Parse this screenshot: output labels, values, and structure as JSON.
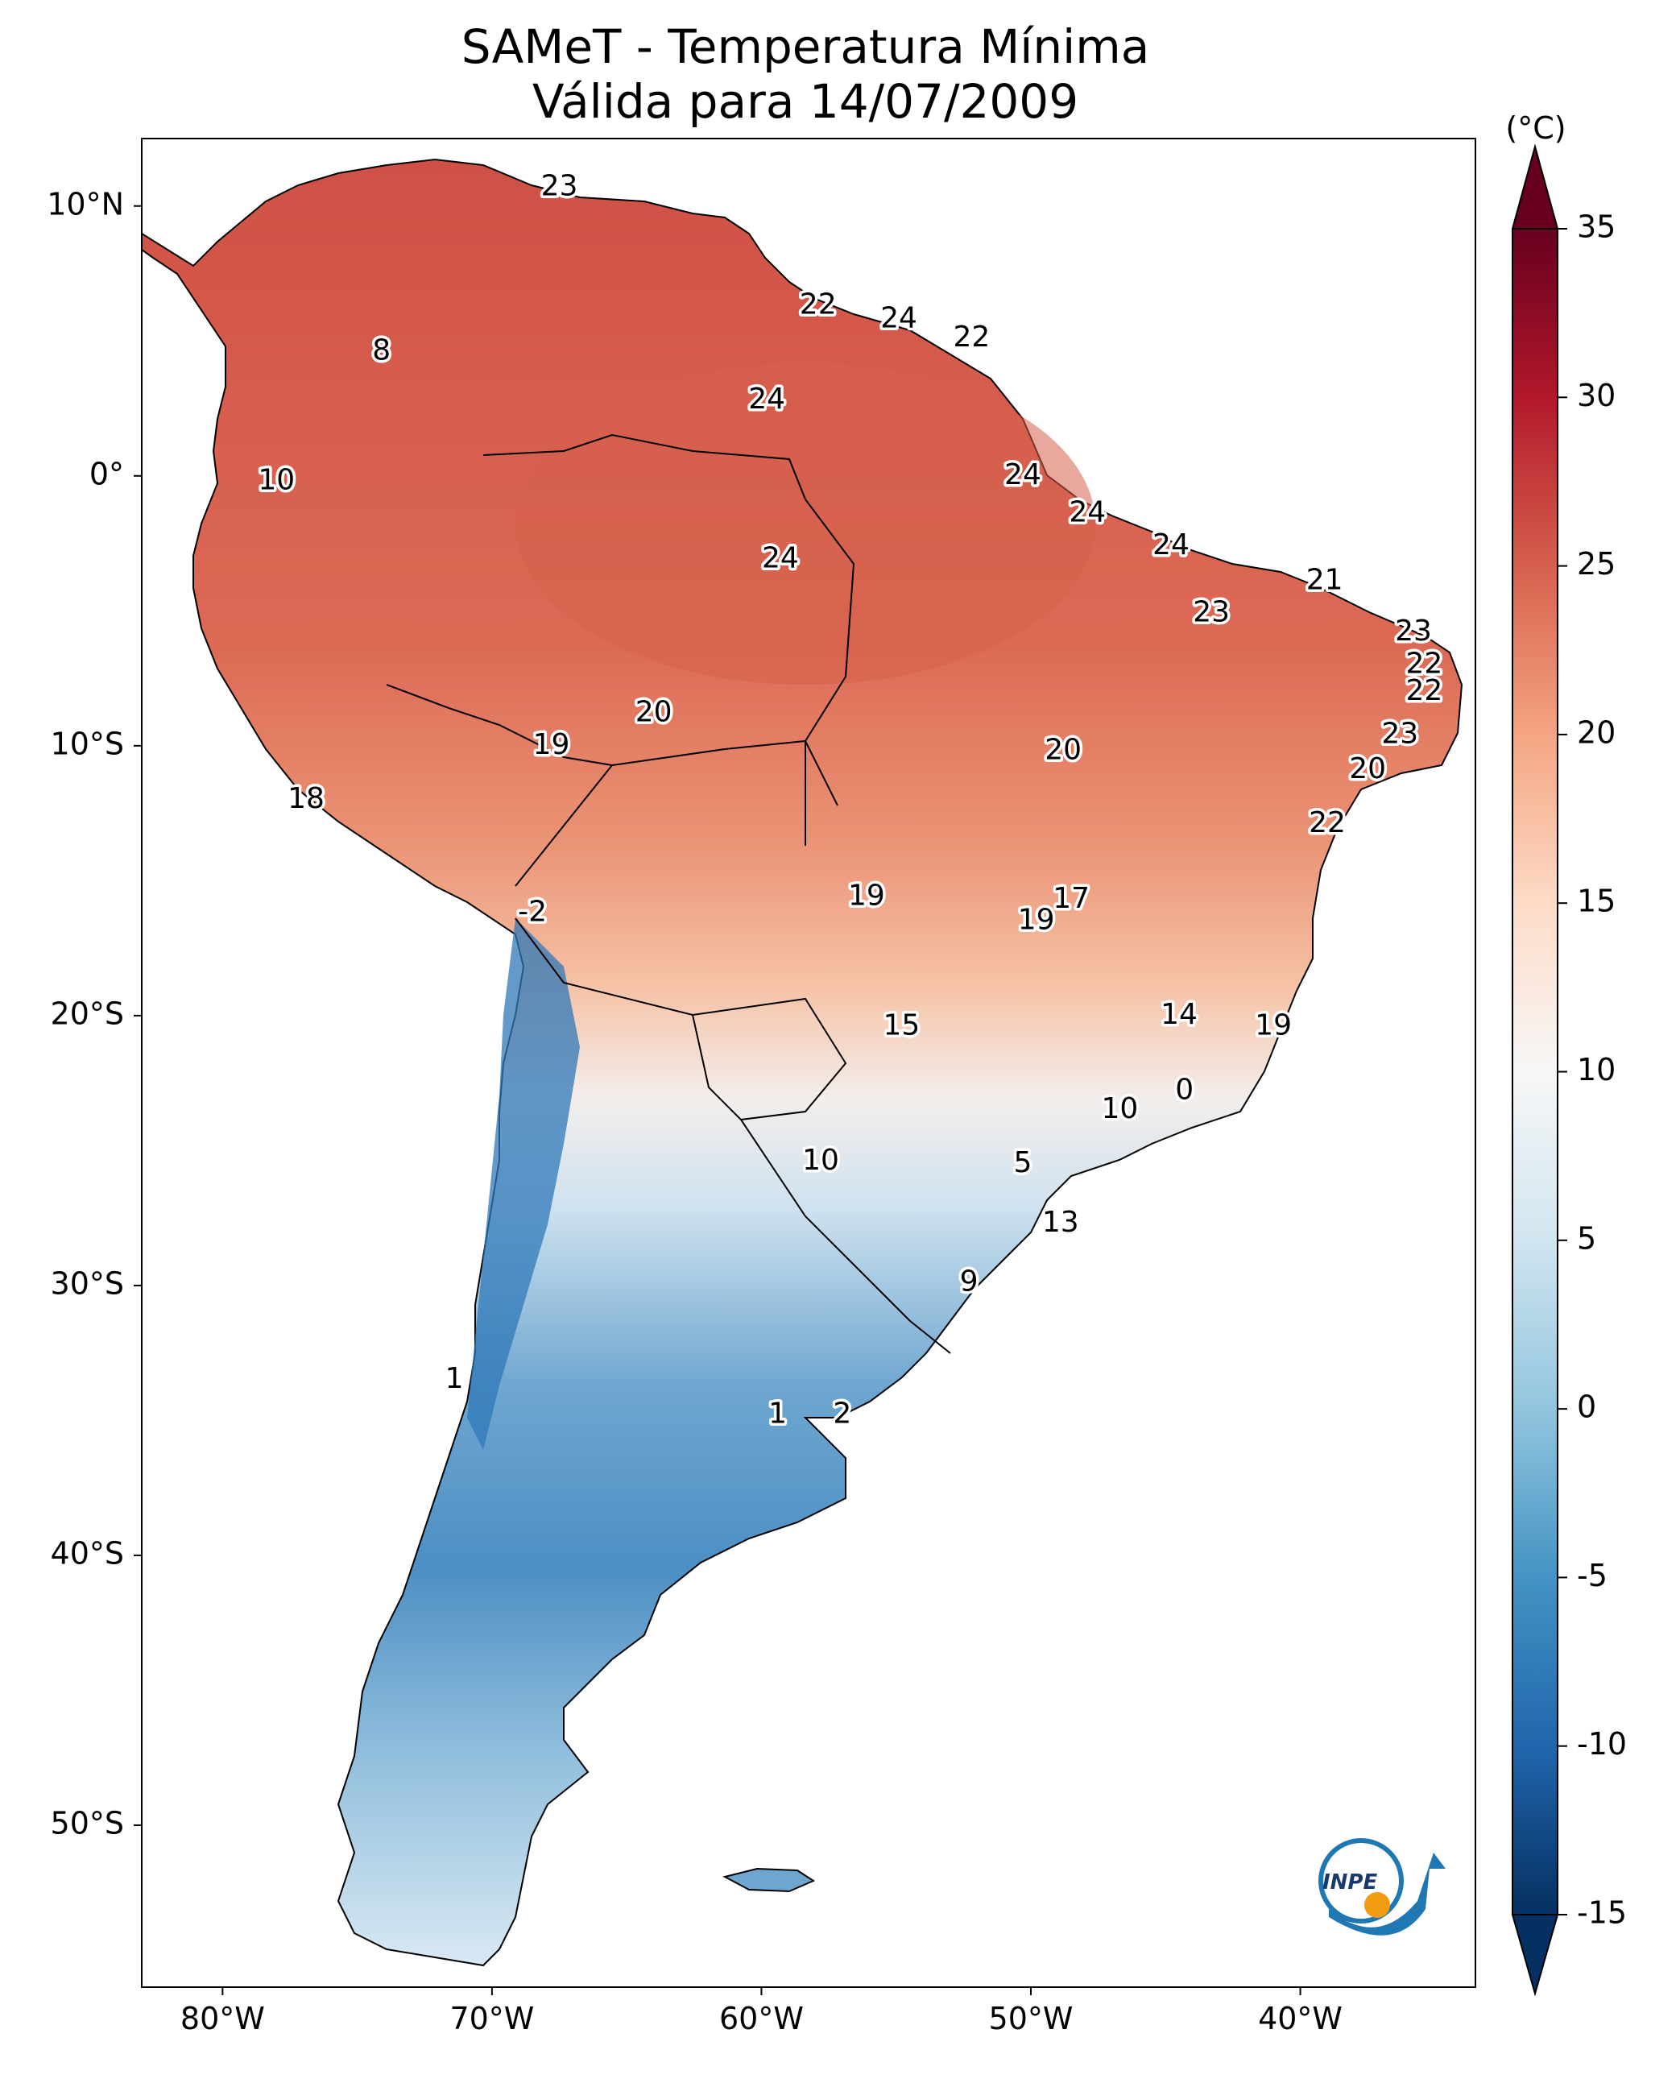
{
  "title": {
    "line1": "SAMeT - Temperatura Mínima",
    "line2": "Válida para 14/07/2009"
  },
  "axes": {
    "lat_ticks": [
      {
        "label": "10°N",
        "value": 10
      },
      {
        "label": "0°",
        "value": 0
      },
      {
        "label": "10°S",
        "value": -10
      },
      {
        "label": "20°S",
        "value": -20
      },
      {
        "label": "30°S",
        "value": -30
      },
      {
        "label": "40°S",
        "value": -40
      },
      {
        "label": "50°S",
        "value": -50
      }
    ],
    "lon_ticks": [
      {
        "label": "80°W",
        "value": -80
      },
      {
        "label": "70°W",
        "value": -70
      },
      {
        "label": "60°W",
        "value": -60
      },
      {
        "label": "50°W",
        "value": -50
      },
      {
        "label": "40°W",
        "value": -40
      }
    ],
    "lon_range": [
      -83,
      -33.5
    ],
    "lat_range": [
      -56,
      12.5
    ]
  },
  "colorbar": {
    "unit": "(°C)",
    "ticks": [
      "35",
      "30",
      "25",
      "20",
      "15",
      "10",
      "5",
      "0",
      "-5",
      "-10",
      "-15"
    ],
    "range": [
      -15,
      35
    ],
    "colormap": "RdBu_r",
    "extend": "both"
  },
  "values": [
    {
      "text": "23",
      "lon": -67.5,
      "lat": 10.7
    },
    {
      "text": "22",
      "lon": -57.9,
      "lat": 6.3
    },
    {
      "text": "24",
      "lon": -54.9,
      "lat": 5.8
    },
    {
      "text": "22",
      "lon": -52.2,
      "lat": 5.1
    },
    {
      "text": "8",
      "lon": -74.1,
      "lat": 4.6
    },
    {
      "text": "24",
      "lon": -59.8,
      "lat": 2.8
    },
    {
      "text": "24",
      "lon": -50.3,
      "lat": 0.0
    },
    {
      "text": "10",
      "lon": -78.0,
      "lat": -0.2
    },
    {
      "text": "24",
      "lon": -47.9,
      "lat": -1.4
    },
    {
      "text": "24",
      "lon": -44.8,
      "lat": -2.6
    },
    {
      "text": "24",
      "lon": -59.3,
      "lat": -3.1
    },
    {
      "text": "21",
      "lon": -39.1,
      "lat": -3.9
    },
    {
      "text": "23",
      "lon": -43.3,
      "lat": -5.1
    },
    {
      "text": "23",
      "lon": -35.8,
      "lat": -5.8
    },
    {
      "text": "22",
      "lon": -35.4,
      "lat": -7.0
    },
    {
      "text": "22",
      "lon": -35.4,
      "lat": -8.0
    },
    {
      "text": "20",
      "lon": -64.0,
      "lat": -8.8
    },
    {
      "text": "23",
      "lon": -36.3,
      "lat": -9.6
    },
    {
      "text": "19",
      "lon": -67.8,
      "lat": -10.0
    },
    {
      "text": "20",
      "lon": -48.8,
      "lat": -10.2
    },
    {
      "text": "20",
      "lon": -37.5,
      "lat": -10.9
    },
    {
      "text": "18",
      "lon": -76.9,
      "lat": -12.0
    },
    {
      "text": "22",
      "lon": -39.0,
      "lat": -12.9
    },
    {
      "text": "17",
      "lon": -48.5,
      "lat": -15.7
    },
    {
      "text": "19",
      "lon": -56.1,
      "lat": -15.6
    },
    {
      "text": "-2",
      "lon": -68.5,
      "lat": -16.2
    },
    {
      "text": "19",
      "lon": -49.8,
      "lat": -16.5
    },
    {
      "text": "14",
      "lon": -44.5,
      "lat": -20.0
    },
    {
      "text": "15",
      "lon": -54.8,
      "lat": -20.4
    },
    {
      "text": "19",
      "lon": -41.0,
      "lat": -20.4
    },
    {
      "text": "0",
      "lon": -44.3,
      "lat": -22.8
    },
    {
      "text": "10",
      "lon": -46.7,
      "lat": -23.5
    },
    {
      "text": "10",
      "lon": -57.8,
      "lat": -25.4
    },
    {
      "text": "5",
      "lon": -50.3,
      "lat": -25.5
    },
    {
      "text": "13",
      "lon": -48.9,
      "lat": -27.7
    },
    {
      "text": "9",
      "lon": -52.3,
      "lat": -29.9
    },
    {
      "text": "1",
      "lon": -71.4,
      "lat": -33.5
    },
    {
      "text": "1",
      "lon": -59.4,
      "lat": -34.8
    },
    {
      "text": "2",
      "lon": -57.0,
      "lat": -34.8
    }
  ],
  "logo": {
    "text": "INPE"
  }
}
